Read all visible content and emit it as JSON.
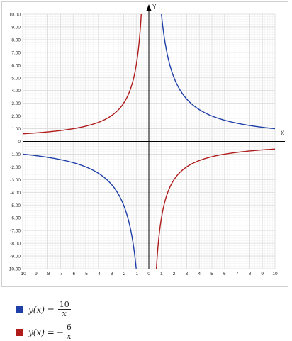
{
  "chart_data": {
    "type": "line",
    "xlabel": "X",
    "ylabel": "Y",
    "xlim": [
      -10,
      10
    ],
    "ylim": [
      -10,
      10
    ],
    "grid": true,
    "x_ticks": [
      "-10",
      "-9",
      "-8",
      "-7",
      "-6",
      "-5",
      "-4",
      "-3",
      "-2",
      "-1",
      "0",
      "1",
      "2",
      "3",
      "4",
      "5",
      "6",
      "7",
      "8",
      "9",
      "10"
    ],
    "y_ticks": [
      "10.00",
      "9.00",
      "8.00",
      "7.00",
      "6.00",
      "5.00",
      "4.00",
      "3.00",
      "2.00",
      "1.00",
      "0",
      "-1.00",
      "-2.00",
      "-3.00",
      "-4.00",
      "-5.00",
      "-6.00",
      "-7.00",
      "-8.00",
      "-9.00",
      "-10.00"
    ],
    "series": [
      {
        "formula": {
          "lhs": "y(x) =",
          "sign": "",
          "num": "10",
          "den": "x"
        },
        "k": 10,
        "color": "#1f3fa8"
      },
      {
        "formula": {
          "lhs": "y(x) =",
          "sign": "−",
          "num": "6",
          "den": "x"
        },
        "k": -6,
        "color": "#b01c1c"
      }
    ]
  }
}
